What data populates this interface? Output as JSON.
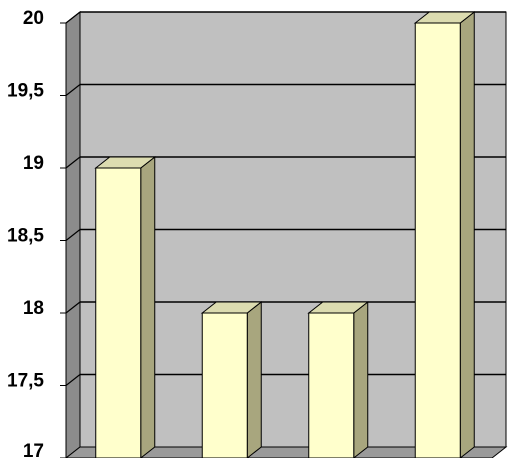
{
  "chart_data": {
    "type": "bar",
    "style": "3d-column",
    "categories": [
      "",
      "",
      "",
      ""
    ],
    "series": [
      {
        "values": [
          19,
          18,
          18,
          20
        ]
      }
    ],
    "ylim": [
      17,
      20
    ],
    "y_ticks": [
      "17",
      "17,5",
      "18",
      "18,5",
      "19",
      "19,5",
      "20"
    ],
    "grid": true,
    "legend": "none",
    "title": "",
    "xlabel": "",
    "ylabel": ""
  },
  "colors": {
    "bar_front": "#ffffcc",
    "bar_side": "#a8a67e",
    "bar_top": "#dcdcb0",
    "plot_back": "#c0c0c0",
    "left_wall": "#8c8c8c",
    "floor": "#9a9a9a",
    "grid": "#000000"
  }
}
